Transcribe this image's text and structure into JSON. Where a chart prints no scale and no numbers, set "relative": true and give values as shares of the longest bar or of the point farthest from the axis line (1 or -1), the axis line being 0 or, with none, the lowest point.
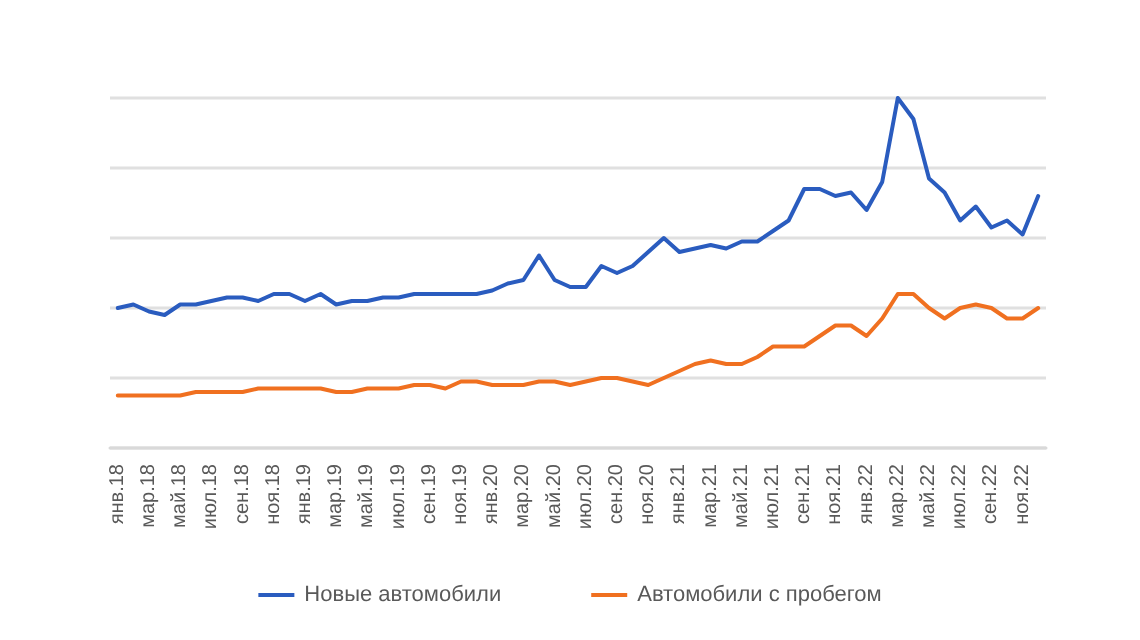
{
  "chart_data": {
    "type": "line",
    "relative": true,
    "grid": "y",
    "legend": "bottom",
    "marker": "none",
    "line_style": "solid",
    "categories": [
      "янв.18",
      null,
      "мар.18",
      null,
      "май.18",
      null,
      "июл.18",
      null,
      "сен.18",
      null,
      "ноя.18",
      null,
      "янв.19",
      null,
      "мар.19",
      null,
      "май.19",
      null,
      "июл.19",
      null,
      "сен.19",
      null,
      "ноя.19",
      null,
      "янв.20",
      null,
      "мар.20",
      null,
      "май.20",
      null,
      "июл.20",
      null,
      "сен.20",
      null,
      "ноя.20",
      null,
      "янв.21",
      null,
      "мар.21",
      null,
      "май.21",
      null,
      "июл.21",
      null,
      "сен.21",
      null,
      "ноя.21",
      null,
      "янв.22",
      null,
      "мар.22",
      null,
      "май.22",
      null,
      "июл.22",
      null,
      "сен.22",
      null,
      "ноя.22",
      null
    ],
    "series": [
      {
        "name": "Новые автомобили",
        "color": "#2a5cbf",
        "values": [
          0.4,
          0.41,
          0.39,
          0.38,
          0.41,
          0.41,
          0.42,
          0.43,
          0.43,
          0.42,
          0.44,
          0.44,
          0.42,
          0.44,
          0.41,
          0.42,
          0.42,
          0.43,
          0.43,
          0.44,
          0.44,
          0.44,
          0.44,
          0.44,
          0.45,
          0.47,
          0.48,
          0.55,
          0.48,
          0.46,
          0.46,
          0.52,
          0.5,
          0.52,
          0.56,
          0.6,
          0.56,
          0.57,
          0.58,
          0.57,
          0.59,
          0.59,
          0.62,
          0.65,
          0.74,
          0.74,
          0.72,
          0.73,
          0.68,
          0.76,
          1,
          0.94,
          0.77,
          0.73,
          0.65,
          0.69,
          0.63,
          0.65,
          0.61,
          0.72
        ]
      },
      {
        "name": "Автомобили с пробегом",
        "color": "#f07020",
        "values": [
          0.15,
          0.15,
          0.15,
          0.15,
          0.15,
          0.16,
          0.16,
          0.16,
          0.16,
          0.17,
          0.17,
          0.17,
          0.17,
          0.17,
          0.16,
          0.16,
          0.17,
          0.17,
          0.17,
          0.18,
          0.18,
          0.17,
          0.19,
          0.19,
          0.18,
          0.18,
          0.18,
          0.19,
          0.19,
          0.18,
          0.19,
          0.2,
          0.2,
          0.19,
          0.18,
          0.2,
          0.22,
          0.24,
          0.25,
          0.24,
          0.24,
          0.26,
          0.29,
          0.29,
          0.29,
          0.32,
          0.35,
          0.35,
          0.32,
          0.37,
          0.44,
          0.44,
          0.4,
          0.37,
          0.4,
          0.41,
          0.4,
          0.37,
          0.37,
          0.4
        ]
      }
    ]
  }
}
